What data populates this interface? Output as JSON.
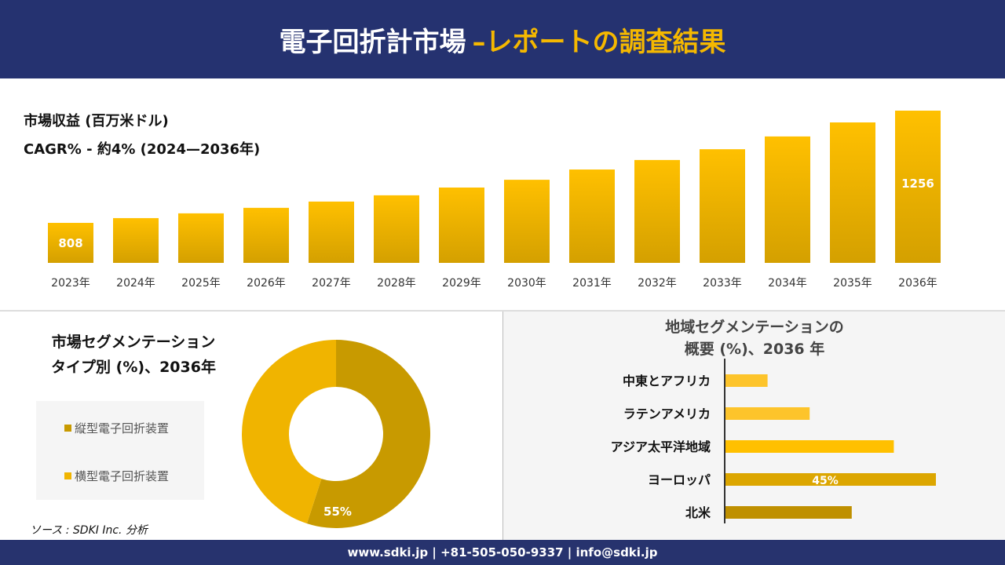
{
  "header": {
    "title": "電子回折計市場",
    "title_accent": "–レポートの調査結果"
  },
  "colors": {
    "navy": "#253270",
    "gold": "#f5b800",
    "dark_gold": "#c49400"
  },
  "chart_data": [
    {
      "type": "bar",
      "title": "市場収益 (百万米ドル)",
      "subtitle": "CAGR% - 約4% (2024—2036年)",
      "categories": [
        "2023年",
        "2024年",
        "2025年",
        "2026年",
        "2027年",
        "2028年",
        "2029年",
        "2030年",
        "2031年",
        "2032年",
        "2033年",
        "2034年",
        "2035年",
        "2036年"
      ],
      "values": [
        808,
        827,
        846,
        868,
        893,
        918,
        949,
        980,
        1021,
        1059,
        1102,
        1153,
        1209,
        1256
      ],
      "data_labels": {
        "0": "808",
        "13": "1256"
      }
    },
    {
      "type": "pie",
      "title": "市場セグメンテーション タイプ別 (%)、2036年",
      "title_line1": "市場セグメンテーション",
      "title_line2": "タイプ別 (%)、2036年",
      "slices": [
        {
          "label": "縦型電子回折装置",
          "value": 55,
          "color": "#c89a00"
        },
        {
          "label": "横型電子回折装置",
          "value": 45,
          "color": "#f0b400"
        }
      ],
      "data_label": "55%"
    },
    {
      "type": "bar",
      "orientation": "horizontal",
      "title_line1": "地域セグメンテーションの",
      "title_line2": "概要 (%)、2036 年",
      "categories": [
        "中東とアフリカ",
        "ラテンアメリカ",
        "アジア太平洋地域",
        "ヨーロッパ",
        "北米"
      ],
      "values": [
        9,
        18,
        36,
        45,
        27
      ],
      "colors": [
        "#fdc42b",
        "#fdc42b",
        "#ffc000",
        "#dca600",
        "#bf9000"
      ],
      "data_label": "45%"
    }
  ],
  "source": "ソース : SDKI Inc. 分析",
  "footer": "www.sdki.jp | +81-505-050-9337 | info@sdki.jp"
}
